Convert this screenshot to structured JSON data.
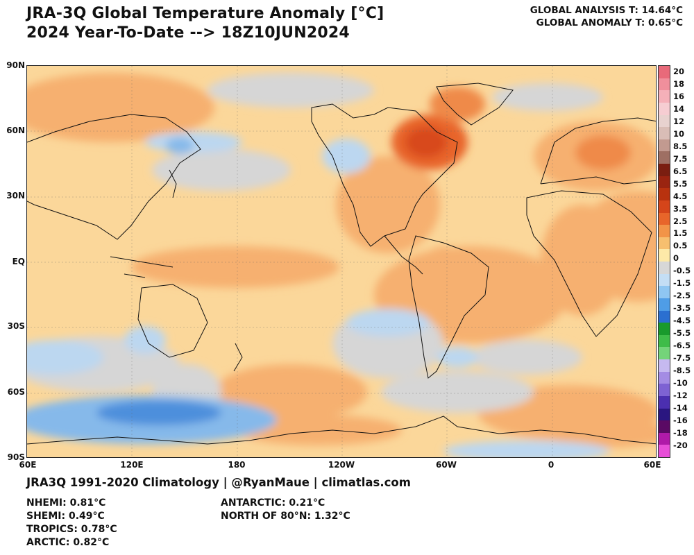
{
  "title": {
    "line1": "JRA-3Q Global Temperature Anomaly [°C]",
    "line2": "2024 Year-To-Date --> 18Z10JUN2024"
  },
  "global_stats": {
    "analysis": "GLOBAL ANALYSIS T: 14.64°C",
    "anomaly": "GLOBAL ANOMALY T: 0.65°C"
  },
  "axes": {
    "lat_labels": [
      "90N",
      "60N",
      "30N",
      "EQ",
      "30S",
      "60S",
      "90S"
    ],
    "lon_labels": [
      "60E",
      "120E",
      "180",
      "120W",
      "60W",
      "0",
      "60E"
    ]
  },
  "colorbar": {
    "labels": [
      "20",
      "18",
      "16",
      "14",
      "12",
      "10",
      "8.5",
      "7.5",
      "6.5",
      "5.5",
      "4.5",
      "3.5",
      "2.5",
      "1.5",
      "0.5",
      "0",
      "-0.5",
      "-1.5",
      "-2.5",
      "-3.5",
      "-4.5",
      "-5.5",
      "-6.5",
      "-7.5",
      "-8.5",
      "-10",
      "-12",
      "-14",
      "-16",
      "-18",
      "-20"
    ],
    "colors": [
      "#e86a7a",
      "#f08f9c",
      "#f5b0b9",
      "#f6cdd2",
      "#e8d2cf",
      "#d9bdb6",
      "#c29a90",
      "#9e6f63",
      "#7a1e10",
      "#9a2410",
      "#b8320f",
      "#d5451a",
      "#e8652a",
      "#f29448",
      "#f7bf6f",
      "#fde9a8",
      "#d7d7d7",
      "#c4def5",
      "#8fc6f2",
      "#4f9de6",
      "#2b6fd0",
      "#199a2c",
      "#3fbc49",
      "#74d47a",
      "#c6b9f0",
      "#a48ce4",
      "#7e62d3",
      "#4b2fb0",
      "#2a1680",
      "#5a0a64",
      "#b01aa8",
      "#e84fd8"
    ]
  },
  "footer": "JRA3Q 1991-2020 Climatology | @RyanMaue | climatlas.com",
  "regional_stats": {
    "left": [
      "NHEMI: 0.81°C",
      "SHEMI: 0.49°C",
      "TROPICS: 0.78°C",
      "ARCTIC: 0.82°C"
    ],
    "right": [
      "ANTARCTIC: 0.21°C",
      "NORTH OF 80°N: 1.32°C"
    ]
  },
  "legend_colors": {
    "warm_light": "#fbd79a",
    "warm_mid": "#f6b070",
    "warm_strong": "#ef8a4a",
    "warm_extreme": "#d8491f",
    "neutral": "#d6d6d6",
    "cool_light": "#bcd7f0",
    "cool_mid": "#86b9ea",
    "cool_strong": "#4d8fdc"
  }
}
